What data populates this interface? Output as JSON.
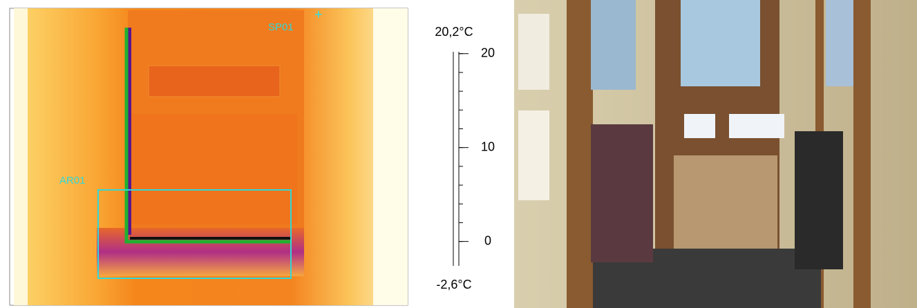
{
  "thermal": {
    "spot_label": "SP01",
    "area_label": "AR01"
  },
  "scale": {
    "max": {
      "value": 20.2,
      "label": "20,2°C"
    },
    "min": {
      "value": -2.6,
      "label": "-2,6°C"
    },
    "ticks": [
      20,
      10,
      0
    ]
  }
}
